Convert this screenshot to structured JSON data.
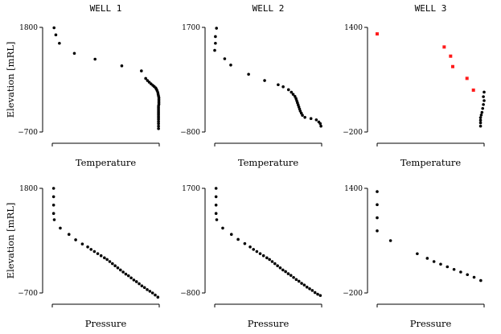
{
  "colors": {
    "default_point": "#000000",
    "highlight_point": "#ff1a1a",
    "axis": "#000000"
  },
  "chart_data": [
    {
      "type": "scatter",
      "title": "WELL 1",
      "xlabel": "Temperature",
      "ylabel": "Elevation [mRL]",
      "xlim": [
        0,
        300
      ],
      "ylim": [
        -700,
        1800
      ],
      "yticks": [
        1800,
        -700
      ],
      "series": [
        {
          "name": "black",
          "color": "#000000",
          "x": [
            5,
            10,
            20,
            62,
            120,
            195,
            250,
            262,
            267,
            272,
            277,
            282,
            286,
            290,
            292,
            294,
            296,
            297,
            298,
            299,
            299,
            299,
            299,
            299,
            298,
            298,
            298,
            298,
            298,
            298,
            298,
            298,
            298,
            298,
            298,
            298,
            298
          ],
          "y": [
            1790,
            1620,
            1420,
            1180,
            1040,
            880,
            760,
            580,
            530,
            490,
            450,
            415,
            385,
            355,
            325,
            290,
            245,
            200,
            160,
            120,
            80,
            40,
            0,
            -40,
            -80,
            -120,
            -160,
            -200,
            -240,
            -280,
            -320,
            -360,
            -400,
            -450,
            -500,
            -560,
            -620
          ]
        }
      ]
    },
    {
      "type": "scatter",
      "title": "WELL 2",
      "xlabel": "Temperature",
      "ylabel": "",
      "xlim": [
        0,
        300
      ],
      "ylim": [
        -800,
        1700
      ],
      "yticks": [
        1700,
        -800
      ],
      "series": [
        {
          "name": "black",
          "color": "#000000",
          "x": [
            5,
            2,
            2,
            0,
            28,
            45,
            95,
            140,
            178,
            192,
            207,
            215,
            220,
            225,
            228,
            230,
            232,
            234,
            236,
            238,
            240,
            243,
            246,
            253,
            270,
            285,
            292,
            296,
            298
          ],
          "y": [
            1680,
            1480,
            1320,
            1150,
            950,
            800,
            580,
            430,
            330,
            280,
            210,
            150,
            100,
            50,
            0,
            -50,
            -100,
            -150,
            -200,
            -250,
            -300,
            -350,
            -400,
            -450,
            -480,
            -510,
            -560,
            -600,
            -660
          ]
        }
      ]
    },
    {
      "type": "scatter",
      "title": "WELL 3",
      "xlabel": "Temperature",
      "ylabel": "",
      "xlim": [
        0,
        300
      ],
      "ylim": [
        -200,
        1400
      ],
      "yticks": [
        1400,
        -200
      ],
      "series": [
        {
          "name": "red",
          "color": "#ff1a1a",
          "x": [
            0,
            188,
            206,
            212,
            252,
            270
          ],
          "y": [
            1300,
            1100,
            960,
            800,
            620,
            440
          ]
        },
        {
          "name": "black",
          "color": "#000000",
          "x": [
            300,
            298,
            300,
            298,
            296,
            294,
            292,
            290,
            290,
            290,
            290
          ],
          "y": [
            410,
            340,
            280,
            220,
            160,
            100,
            60,
            20,
            -20,
            -60,
            -110
          ]
        }
      ]
    },
    {
      "type": "scatter",
      "title": "",
      "xlabel": "Pressure",
      "ylabel": "Elevation [mRL]",
      "xlim": [
        0,
        160
      ],
      "ylim": [
        -700,
        1800
      ],
      "yticks": [
        1800,
        -700
      ],
      "series": [
        {
          "name": "black",
          "color": "#000000",
          "x": [
            2,
            2,
            2,
            2,
            3,
            12,
            25,
            35,
            45,
            53,
            58,
            63,
            68,
            73,
            78,
            82,
            86,
            90,
            94,
            98,
            102,
            106,
            110,
            114,
            118,
            122,
            126,
            130,
            134,
            138,
            142,
            146,
            150,
            154,
            158
          ],
          "y": [
            1800,
            1600,
            1400,
            1200,
            1050,
            850,
            700,
            570,
            470,
            400,
            340,
            290,
            240,
            190,
            140,
            100,
            50,
            0,
            -50,
            -100,
            -150,
            -200,
            -250,
            -290,
            -340,
            -390,
            -430,
            -480,
            -530,
            -570,
            -620,
            -660,
            -700,
            -750,
            -800
          ]
        }
      ]
    },
    {
      "type": "scatter",
      "title": "",
      "xlabel": "Pressure",
      "ylabel": "",
      "xlim": [
        0,
        160
      ],
      "ylim": [
        -800,
        1700
      ],
      "yticks": [
        1700,
        -800
      ],
      "series": [
        {
          "name": "black",
          "color": "#000000",
          "x": [
            2,
            2,
            2,
            2,
            3,
            12,
            25,
            35,
            45,
            53,
            58,
            63,
            68,
            73,
            78,
            82,
            86,
            90,
            94,
            98,
            102,
            106,
            110,
            114,
            118,
            122,
            126,
            130,
            134,
            138,
            142,
            146,
            150,
            154,
            158
          ],
          "y": [
            1700,
            1500,
            1300,
            1100,
            950,
            750,
            600,
            480,
            380,
            300,
            240,
            190,
            140,
            90,
            40,
            0,
            -50,
            -100,
            -150,
            -200,
            -250,
            -290,
            -340,
            -380,
            -430,
            -480,
            -520,
            -570,
            -610,
            -660,
            -700,
            -740,
            -790,
            -830,
            -860
          ]
        }
      ]
    },
    {
      "type": "scatter",
      "title": "",
      "xlabel": "Pressure",
      "ylabel": "",
      "xlim": [
        0,
        160
      ],
      "ylim": [
        -200,
        1400
      ],
      "yticks": [
        1400,
        -200
      ],
      "series": [
        {
          "name": "black",
          "color": "#000000",
          "x": [
            0,
            0,
            0,
            0,
            20,
            60,
            75,
            85,
            95,
            105,
            115,
            125,
            135,
            145,
            155
          ],
          "y": [
            1350,
            1150,
            950,
            750,
            600,
            400,
            330,
            280,
            240,
            200,
            160,
            120,
            80,
            40,
            -10
          ]
        }
      ]
    }
  ]
}
